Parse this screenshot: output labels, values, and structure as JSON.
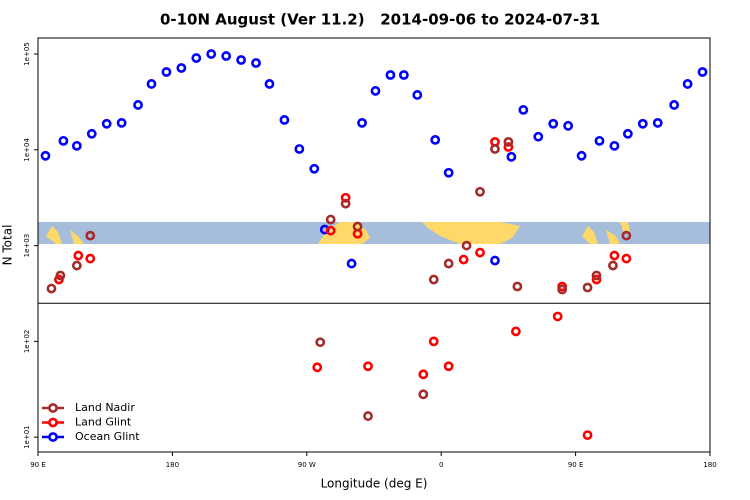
{
  "chart_data": {
    "type": "scatter",
    "title": "0-10N August (Ver 11.2)   2014-09-06 to 2024-07-31",
    "x_label": "Longitude (deg E)",
    "y_label": "N Total",
    "log_y": true,
    "legend": "bottom-left",
    "xlim": [
      90,
      540
    ],
    "ylim": [
      7,
      147000
    ],
    "xticks": [
      {
        "value": 90,
        "label": "90 E"
      },
      {
        "value": 180,
        "label": "180"
      },
      {
        "value": 270,
        "label": "90 W"
      },
      {
        "value": 360,
        "label": "0"
      },
      {
        "value": 450,
        "label": "90 E"
      },
      {
        "value": 540,
        "label": "180"
      }
    ],
    "yticks": [
      {
        "value": 10,
        "label": "1e+01"
      },
      {
        "value": 100,
        "label": "1e+02"
      },
      {
        "value": 1000,
        "label": "1e+03"
      },
      {
        "value": 10000,
        "label": "1e+04"
      },
      {
        "value": 100000,
        "label": "1e+05"
      }
    ],
    "reference_line": 250,
    "series": [
      {
        "name": "Land Nadir",
        "color": "#a52a2a",
        "x": [
          99,
          105,
          116,
          125,
          279,
          286,
          296,
          304,
          311,
          348,
          355,
          365,
          377,
          386,
          396,
          405,
          411,
          441,
          458,
          464,
          475,
          484
        ],
        "values": [
          356,
          487,
          619,
          1270,
          98,
          1870,
          2740,
          1580,
          16.6,
          28,
          442,
          649,
          1000,
          3650,
          10200,
          12100,
          374,
          348,
          365,
          487,
          619,
          1270
        ]
      },
      {
        "name": "Land Glint",
        "color": "#ff0000",
        "x": [
          104,
          117,
          125,
          277,
          286,
          296,
          304,
          311,
          348,
          355,
          365,
          375,
          386,
          396,
          405,
          410,
          438,
          441,
          458,
          464,
          476,
          484
        ],
        "values": [
          442,
          787,
          732,
          53.6,
          1430,
          3160,
          1330,
          55,
          45.3,
          100,
          55,
          715,
          846,
          12100,
          10700,
          127,
          182,
          374,
          10.5,
          442,
          787,
          732
        ]
      },
      {
        "name": "Ocean Glint",
        "color": "#0000ff",
        "x": [
          95,
          107,
          116,
          126,
          136,
          146,
          157,
          166,
          176,
          186,
          196,
          206,
          216,
          226,
          236,
          245,
          255,
          265,
          275,
          282,
          300,
          307,
          316,
          326,
          335,
          344,
          356,
          365,
          396,
          407,
          415,
          425,
          435,
          445,
          454,
          466,
          476,
          485,
          495,
          505,
          516,
          525,
          535
        ],
        "values": [
          8660,
          12400,
          11000,
          14700,
          18700,
          19100,
          29400,
          48700,
          64900,
          71500,
          90800,
          100000,
          95300,
          86600,
          80600,
          48700,
          20500,
          10200,
          6340,
          1470,
          649,
          19100,
          41200,
          60400,
          60400,
          37400,
          12700,
          5760,
          698,
          8450,
          26100,
          13700,
          18700,
          17800,
          8660,
          12400,
          11000,
          14700,
          18700,
          19100,
          29400,
          48700,
          64900
        ]
      }
    ]
  }
}
